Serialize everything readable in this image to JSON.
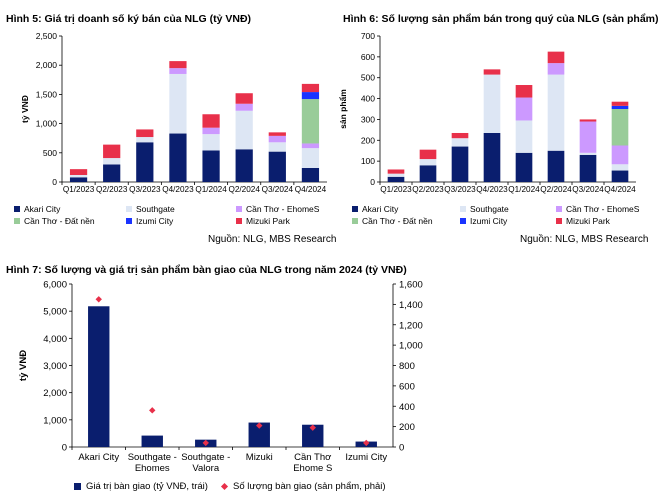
{
  "figures": {
    "fig5": {
      "title": "Hình 5: Giá trị doanh số ký bán của NLG (tỷ VNĐ)",
      "source": "Nguồn: NLG, MBS Research"
    },
    "fig6": {
      "title": "Hình 6: Số lượng sản phẩm bán trong quý của NLG (sản phẩm)",
      "source": "Nguồn: NLG, MBS Research"
    },
    "fig7": {
      "title": "Hình 7: Số lượng và giá trị sản phẩm bàn giao của NLG trong năm 2024 (tỷ VNĐ)"
    }
  },
  "colors": {
    "akari": "#0a1e6e",
    "southgate": "#dde6f4",
    "ehome": "#cc99ff",
    "dat_nen": "#99cc99",
    "izumi": "#1a33ff",
    "mizuki": "#e8304a",
    "diamond": "#e8304a"
  },
  "chart_data": [
    {
      "id": "fig5",
      "type": "bar",
      "stacked": true,
      "title": "Hình 5: Giá trị doanh số ký bán của NLG (tỷ VNĐ)",
      "ylabel": "tỷ VNĐ",
      "ylim": [
        0,
        2500
      ],
      "yticks": [
        0,
        500,
        1000,
        1500,
        2000,
        2500
      ],
      "ytick_labels": [
        "0",
        "500",
        "1,000",
        "1,500",
        "2,000",
        "2,500"
      ],
      "categories": [
        "Q1/2023",
        "Q2/2023",
        "Q3/2023",
        "Q4/2023",
        "Q1/2024",
        "Q2/2024",
        "Q3/2024",
        "Q4/2024"
      ],
      "series": [
        {
          "name": "Akari City",
          "color_key": "akari",
          "values": [
            80,
            300,
            680,
            830,
            540,
            560,
            520,
            240
          ]
        },
        {
          "name": "Southgate",
          "color_key": "southgate",
          "values": [
            40,
            110,
            90,
            1020,
            280,
            660,
            160,
            340
          ]
        },
        {
          "name": "Cần Thơ - EhomeS",
          "color_key": "ehome",
          "values": [
            0,
            0,
            0,
            100,
            110,
            120,
            110,
            80
          ]
        },
        {
          "name": "Cần Thơ - Đất nền",
          "color_key": "dat_nen",
          "values": [
            0,
            0,
            0,
            0,
            0,
            0,
            0,
            760
          ]
        },
        {
          "name": "Izumi City",
          "color_key": "izumi",
          "values": [
            0,
            0,
            0,
            0,
            0,
            0,
            0,
            120
          ]
        },
        {
          "name": "Mizuki Park",
          "color_key": "mizuki",
          "values": [
            100,
            230,
            130,
            120,
            230,
            180,
            60,
            140
          ]
        }
      ]
    },
    {
      "id": "fig6",
      "type": "bar",
      "stacked": true,
      "title": "Hình 6: Số lượng sản phẩm bán trong quý của NLG (sản phẩm)",
      "ylabel": "sản phẩm",
      "ylim": [
        0,
        700
      ],
      "yticks": [
        0,
        100,
        200,
        300,
        400,
        500,
        600,
        700
      ],
      "ytick_labels": [
        "0",
        "100",
        "200",
        "300",
        "400",
        "500",
        "600",
        "700"
      ],
      "categories": [
        "Q1/2023",
        "Q2/2023",
        "Q3/2023",
        "Q4/2023",
        "Q1/2024",
        "Q2/2024",
        "Q3/2024",
        "Q4/2024"
      ],
      "series": [
        {
          "name": "Akari City",
          "color_key": "akari",
          "values": [
            25,
            80,
            170,
            235,
            140,
            150,
            130,
            55
          ]
        },
        {
          "name": "Southgate",
          "color_key": "southgate",
          "values": [
            15,
            30,
            40,
            280,
            155,
            365,
            10,
            30
          ]
        },
        {
          "name": "Cần Thơ - EhomeS",
          "color_key": "ehome",
          "values": [
            0,
            0,
            0,
            0,
            110,
            55,
            150,
            90
          ]
        },
        {
          "name": "Cần Thơ - Đất nền",
          "color_key": "dat_nen",
          "values": [
            0,
            0,
            0,
            0,
            0,
            0,
            0,
            175
          ]
        },
        {
          "name": "Izumi City",
          "color_key": "izumi",
          "values": [
            0,
            0,
            0,
            0,
            0,
            0,
            0,
            15
          ]
        },
        {
          "name": "Mizuki Park",
          "color_key": "mizuki",
          "values": [
            20,
            45,
            25,
            25,
            60,
            55,
            10,
            20
          ]
        }
      ]
    },
    {
      "id": "fig7",
      "type": "bar",
      "title": "Hình 7: Số lượng và giá trị sản phẩm bàn giao của NLG trong năm 2024 (tỷ VNĐ)",
      "ylabel": "tỷ VNĐ",
      "ylim": [
        0,
        6000
      ],
      "yticks": [
        0,
        1000,
        2000,
        3000,
        4000,
        5000,
        6000
      ],
      "ytick_labels": [
        "0",
        "1,000",
        "2,000",
        "3,000",
        "4,000",
        "5,000",
        "6,000"
      ],
      "y2lim": [
        0,
        1600
      ],
      "y2ticks": [
        0,
        200,
        400,
        600,
        800,
        1000,
        1200,
        1400,
        1600
      ],
      "y2tick_labels": [
        "0",
        "200",
        "400",
        "600",
        "800",
        "1,000",
        "1,200",
        "1,400",
        "1,600"
      ],
      "categories": [
        [
          "Akari City"
        ],
        [
          "Southgate -",
          "Ehomes"
        ],
        [
          "Southgate -",
          "Valora"
        ],
        [
          "Mizuki"
        ],
        [
          "Cần Thơ",
          "Ehome S"
        ],
        [
          "Izumi City"
        ]
      ],
      "series": [
        {
          "name": "Giá trị bàn giao (tỷ VNĐ, trái)",
          "type": "bar",
          "color_key": "akari",
          "values": [
            5180,
            420,
            270,
            900,
            820,
            200
          ]
        },
        {
          "name": "Số lượng bàn giao (sản phẩm, phải)",
          "type": "scatter",
          "axis": "right",
          "color_key": "diamond",
          "values": [
            1450,
            360,
            40,
            210,
            190,
            40
          ]
        }
      ]
    }
  ]
}
